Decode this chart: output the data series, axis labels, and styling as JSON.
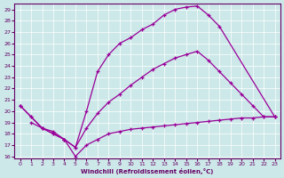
{
  "xlabel": "Windchill (Refroidissement éolien,°C)",
  "bg_color": "#cce8e8",
  "line_color": "#990099",
  "xlim": [
    -0.5,
    23.5
  ],
  "ylim": [
    15.8,
    29.5
  ],
  "xticks": [
    0,
    1,
    2,
    3,
    4,
    5,
    6,
    7,
    8,
    9,
    10,
    11,
    12,
    13,
    14,
    15,
    16,
    17,
    18,
    19,
    20,
    21,
    22,
    23
  ],
  "yticks": [
    16,
    17,
    18,
    19,
    20,
    21,
    22,
    23,
    24,
    25,
    26,
    27,
    28,
    29
  ],
  "curve1_x": [
    0,
    1,
    2,
    3,
    4,
    5,
    6,
    7,
    8,
    9,
    10,
    11,
    12,
    13,
    14,
    15,
    16,
    17,
    18,
    23
  ],
  "curve1_y": [
    20.5,
    19.5,
    18.5,
    18.0,
    17.5,
    16.8,
    20.0,
    23.5,
    25.0,
    26.0,
    26.5,
    27.2,
    27.7,
    28.5,
    29.0,
    29.2,
    29.3,
    28.5,
    27.5,
    19.5
  ],
  "curve2_x": [
    0,
    1,
    2,
    3,
    4,
    5,
    6,
    7,
    8,
    9,
    10,
    11,
    12,
    13,
    14,
    15,
    16,
    17,
    18,
    19,
    20,
    21,
    22,
    23
  ],
  "curve2_y": [
    20.5,
    19.5,
    18.5,
    18.0,
    17.5,
    16.8,
    18.5,
    19.8,
    20.8,
    21.5,
    22.3,
    23.0,
    23.7,
    24.2,
    24.7,
    25.0,
    25.3,
    24.5,
    23.5,
    22.5,
    21.5,
    20.5,
    19.5,
    19.5
  ],
  "curve3_x": [
    1,
    2,
    3,
    4,
    5,
    6,
    7,
    8,
    9,
    10,
    11,
    12,
    13,
    14,
    15,
    16,
    17,
    18,
    19,
    20,
    21,
    22,
    23
  ],
  "curve3_y": [
    19.0,
    18.5,
    18.2,
    17.5,
    16.0,
    17.0,
    17.5,
    18.0,
    18.2,
    18.4,
    18.5,
    18.6,
    18.7,
    18.8,
    18.9,
    19.0,
    19.1,
    19.2,
    19.3,
    19.4,
    19.4,
    19.5,
    19.5
  ]
}
